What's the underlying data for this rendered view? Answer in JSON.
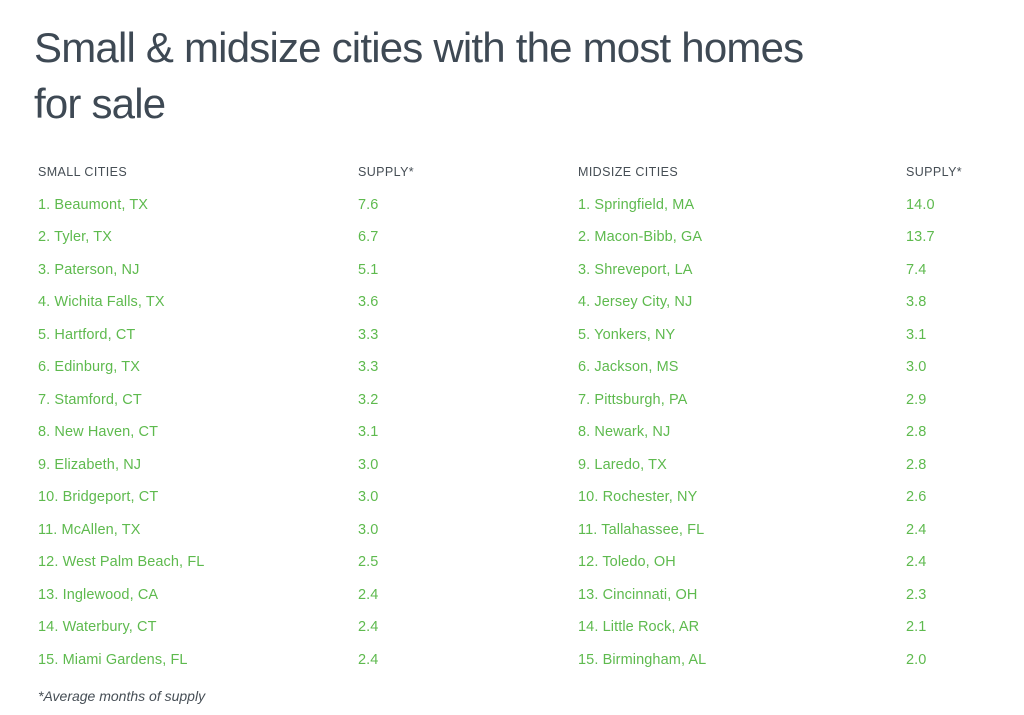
{
  "title": {
    "line1": "Small & midsize cities with the most homes",
    "line2": "for sale"
  },
  "footnote": "*Average months of supply",
  "colors": {
    "accent_green": "#5eba4e",
    "heading_text": "#3e4954",
    "label_text": "#464e55",
    "background": "#ffffff"
  },
  "chart_data": [
    {
      "type": "table",
      "title": "Small cities supply",
      "columns": [
        "SMALL CITIES",
        "SUPPLY*"
      ],
      "rows": [
        [
          "1. Beaumont, TX",
          "7.6"
        ],
        [
          "2. Tyler, TX",
          "6.7"
        ],
        [
          "3. Paterson, NJ",
          "5.1"
        ],
        [
          "4. Wichita Falls, TX",
          "3.6"
        ],
        [
          "5. Hartford, CT",
          "3.3"
        ],
        [
          "6. Edinburg, TX",
          "3.3"
        ],
        [
          "7. Stamford, CT",
          "3.2"
        ],
        [
          "8. New Haven, CT",
          "3.1"
        ],
        [
          "9. Elizabeth, NJ",
          "3.0"
        ],
        [
          "10. Bridgeport, CT",
          "3.0"
        ],
        [
          "11. McAllen, TX",
          "3.0"
        ],
        [
          "12. West Palm Beach, FL",
          "2.5"
        ],
        [
          "13. Inglewood, CA",
          "2.4"
        ],
        [
          "14. Waterbury, CT",
          "2.4"
        ],
        [
          "15. Miami Gardens, FL",
          "2.4"
        ]
      ]
    },
    {
      "type": "table",
      "title": "Midsize cities supply",
      "columns": [
        "MIDSIZE CITIES",
        "SUPPLY*"
      ],
      "rows": [
        [
          "1. Springfield, MA",
          "14.0"
        ],
        [
          "2. Macon-Bibb, GA",
          "13.7"
        ],
        [
          "3. Shreveport, LA",
          "7.4"
        ],
        [
          "4. Jersey City, NJ",
          "3.8"
        ],
        [
          "5. Yonkers, NY",
          "3.1"
        ],
        [
          "6. Jackson, MS",
          "3.0"
        ],
        [
          "7. Pittsburgh, PA",
          "2.9"
        ],
        [
          "8. Newark, NJ",
          "2.8"
        ],
        [
          "9. Laredo, TX",
          "2.8"
        ],
        [
          "10. Rochester, NY",
          "2.6"
        ],
        [
          "11. Tallahassee, FL",
          "2.4"
        ],
        [
          "12. Toledo, OH",
          "2.4"
        ],
        [
          "13. Cincinnati, OH",
          "2.3"
        ],
        [
          "14. Little Rock, AR",
          "2.1"
        ],
        [
          "15. Birmingham, AL",
          "2.0"
        ]
      ]
    }
  ]
}
